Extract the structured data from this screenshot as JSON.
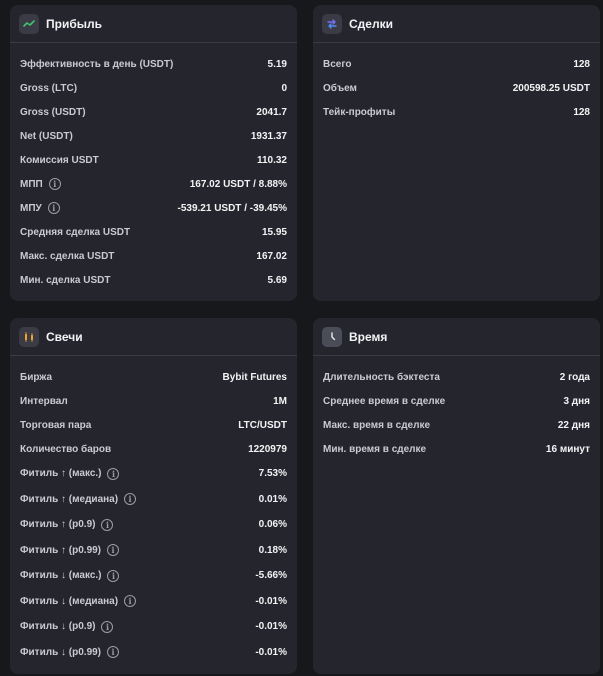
{
  "colors": {
    "background": "#17181c",
    "card": "#25262d",
    "profit_icon": "#3ec46d",
    "deals_icon": "#7b6cf6",
    "candles_icon": "#f0a52c",
    "time_icon": "#cfd2da"
  },
  "profit": {
    "title": "Прибыль",
    "icon": "chart-line-icon",
    "rows": [
      {
        "label": "Эффективность в день (USDT)",
        "value": "5.19"
      },
      {
        "label": "Gross (LTC)",
        "value": "0"
      },
      {
        "label": "Gross (USDT)",
        "value": "2041.7"
      },
      {
        "label": "Net (USDT)",
        "value": "1931.37"
      },
      {
        "label": "Комиссия USDT",
        "value": "110.32"
      },
      {
        "label": "МПП",
        "value": "167.02 USDT / 8.88%",
        "info": "i"
      },
      {
        "label": "МПУ",
        "value": "-539.21 USDT / -39.45%",
        "info": "i"
      },
      {
        "label": "Средняя сделка USDT",
        "value": "15.95"
      },
      {
        "label": "Макс. сделка USDT",
        "value": "167.02"
      },
      {
        "label": "Мин. сделка USDT",
        "value": "5.69"
      }
    ]
  },
  "deals": {
    "title": "Сделки",
    "icon": "swap-arrows-icon",
    "rows": [
      {
        "label": "Всего",
        "value": "128"
      },
      {
        "label": "Объем",
        "value": "200598.25 USDT"
      },
      {
        "label": "Тейк-профиты",
        "value": "128"
      }
    ]
  },
  "candles": {
    "title": "Свечи",
    "icon": "candles-icon",
    "rows": [
      {
        "label": "Биржа",
        "value": "Bybit Futures"
      },
      {
        "label": "Интервал",
        "value": "1M"
      },
      {
        "label": "Торговая пара",
        "value": "LTC/USDT"
      },
      {
        "label": "Количество баров",
        "value": "1220979"
      },
      {
        "label": "Фитиль ↑ (макс.)",
        "value": "7.53%",
        "info": "i"
      },
      {
        "label": "Фитиль ↑ (медиана)",
        "value": "0.01%",
        "info": "i"
      },
      {
        "label": "Фитиль ↑ (p0.9)",
        "value": "0.06%",
        "info": "i"
      },
      {
        "label": "Фитиль ↑ (p0.99)",
        "value": "0.18%",
        "info": "i"
      },
      {
        "label": "Фитиль ↓ (макс.)",
        "value": "-5.66%",
        "info": "i"
      },
      {
        "label": "Фитиль ↓ (медиана)",
        "value": "-0.01%",
        "info": "i"
      },
      {
        "label": "Фитиль ↓ (p0.9)",
        "value": "-0.01%",
        "info": "i"
      },
      {
        "label": "Фитиль ↓ (p0.99)",
        "value": "-0.01%",
        "info": "i"
      }
    ]
  },
  "time": {
    "title": "Время",
    "icon": "clock-icon",
    "rows": [
      {
        "label": "Длительность бэктеста",
        "value": "2 года"
      },
      {
        "label": "Среднее время в сделке",
        "value": "3 дня"
      },
      {
        "label": "Макс. время в сделке",
        "value": "22 дня"
      },
      {
        "label": "Мин. время в сделке",
        "value": "16 минут"
      }
    ]
  }
}
